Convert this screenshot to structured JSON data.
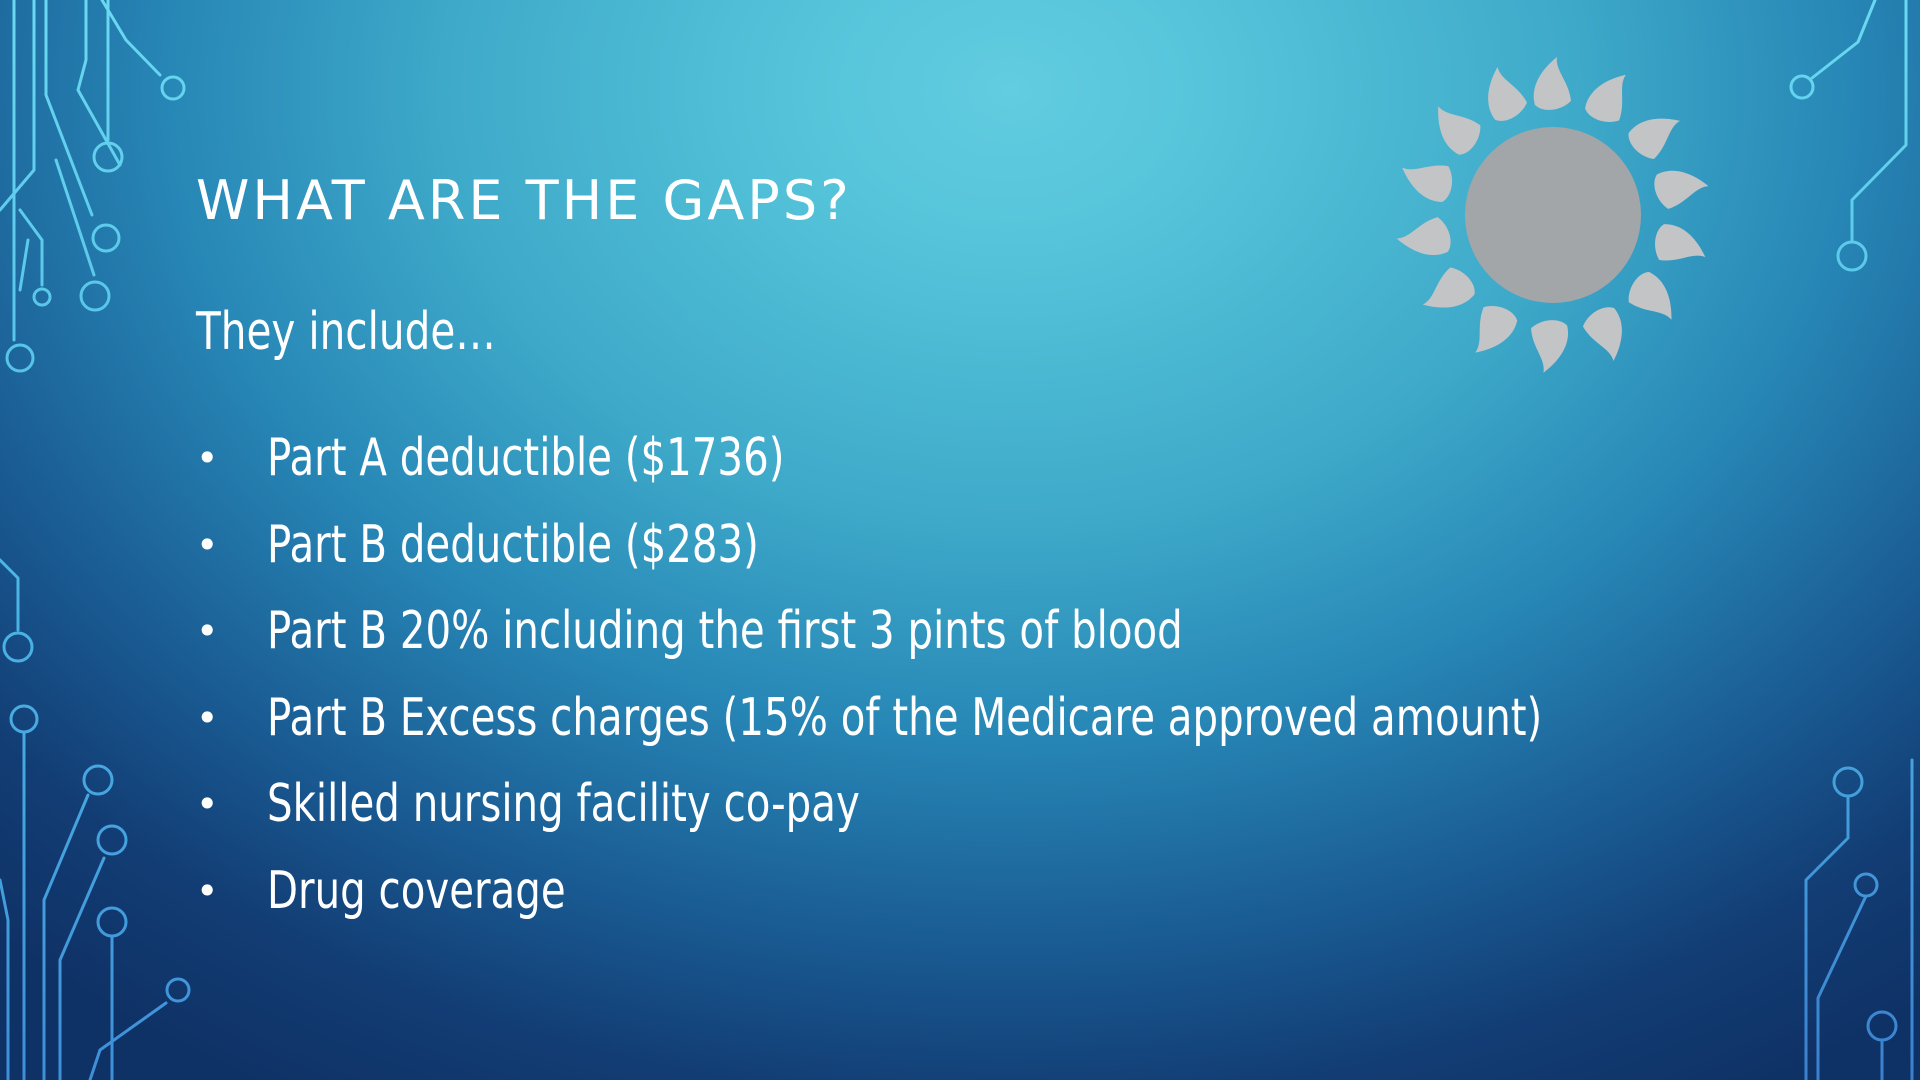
{
  "slide": {
    "title": "WHAT ARE THE GAPS?",
    "subtitle": "They include…",
    "bullets": [
      {
        "marker": "•",
        "text": "Part A deductible ($1736)"
      },
      {
        "marker": "•",
        "text": "Part B deductible ($283)"
      },
      {
        "marker": "•",
        "text": "Part B 20% including the first 3 pints of blood"
      },
      {
        "marker": "•",
        "text": "Part B Excess charges (15% of the Medicare approved amount)"
      },
      {
        "marker": "•",
        "text": "Skilled nursing facility co-pay"
      },
      {
        "marker": "•",
        "text": "Drug coverage"
      }
    ]
  },
  "decoration": {
    "sun_icon": "sun-icon",
    "circuit_icon": "circuit-lines",
    "sun_color": "#a3a6a8",
    "ray_color": "#c2c4c6",
    "circuit_color": "#5fd3ef"
  }
}
